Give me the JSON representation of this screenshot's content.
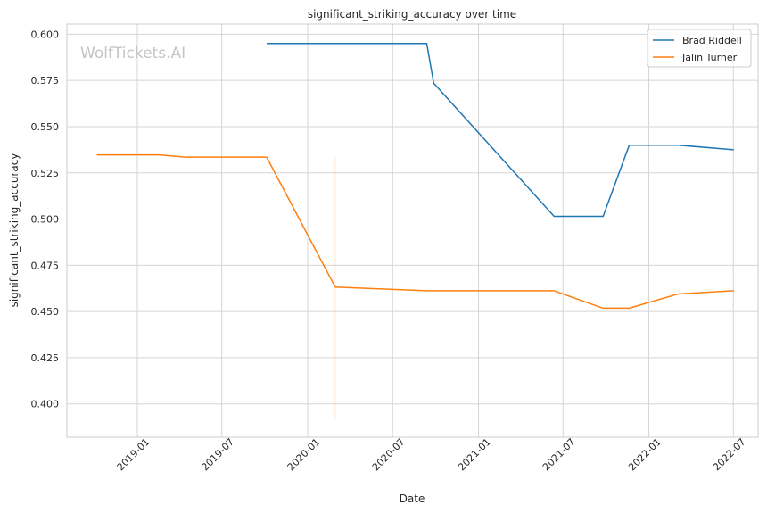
{
  "chart_data": {
    "type": "line",
    "title": "significant_striking_accuracy over time",
    "xlabel": "Date",
    "ylabel": "significant_striking_accuracy",
    "watermark": "WolfTickets.AI",
    "x_ticks": [
      "2019-01",
      "2019-07",
      "2020-01",
      "2020-07",
      "2021-01",
      "2021-07",
      "2022-01",
      "2022-07"
    ],
    "y_ticks": [
      "0.400",
      "0.425",
      "0.450",
      "0.475",
      "0.500",
      "0.525",
      "0.550",
      "0.575",
      "0.600"
    ],
    "xlim": [
      "2018-08-03",
      "2022-08-23"
    ],
    "ylim": [
      0.382,
      0.6055
    ],
    "grid": true,
    "legend_position": "top-right",
    "colors": {
      "series_1": "#1f77b4",
      "series_2": "#ff7f0e",
      "grid": "#d5d5d5",
      "axes": "#cccccc"
    },
    "series": [
      {
        "name": "Brad Riddell",
        "color": "#1f77b4",
        "points": [
          {
            "x": "2019-10-05",
            "y": 0.595
          },
          {
            "x": "2020-09-12",
            "y": 0.595
          },
          {
            "x": "2020-09-27",
            "y": 0.5735
          },
          {
            "x": "2021-06-12",
            "y": 0.5015
          },
          {
            "x": "2021-09-25",
            "y": 0.5015
          },
          {
            "x": "2021-11-20",
            "y": 0.54
          },
          {
            "x": "2022-03-05",
            "y": 0.54
          },
          {
            "x": "2022-07-02",
            "y": 0.5375
          }
        ]
      },
      {
        "name": "Jalin Turner",
        "color": "#ff7f0e",
        "points": [
          {
            "x": "2018-10-06",
            "y": 0.5347
          },
          {
            "x": "2019-02-17",
            "y": 0.5347
          },
          {
            "x": "2019-04-13",
            "y": 0.5335
          },
          {
            "x": "2019-10-05",
            "y": 0.5335
          },
          {
            "x": "2020-02-29",
            "y": 0.4632
          },
          {
            "x": "2020-09-12",
            "y": 0.4612
          },
          {
            "x": "2021-06-12",
            "y": 0.4612
          },
          {
            "x": "2021-09-25",
            "y": 0.4518
          },
          {
            "x": "2021-11-20",
            "y": 0.4518
          },
          {
            "x": "2022-03-05",
            "y": 0.4595
          },
          {
            "x": "2022-07-02",
            "y": 0.4612
          }
        ]
      }
    ],
    "annotations": [
      {
        "type": "vertical-line",
        "x": "2020-02-29",
        "y_from": 0.392,
        "y_to": 0.5335,
        "color": "#ff7f0e",
        "opacity": 0.18
      }
    ]
  }
}
